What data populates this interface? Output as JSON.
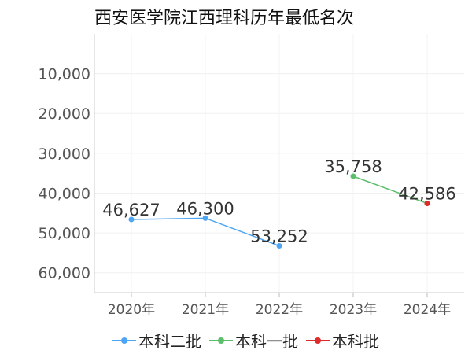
{
  "chart_data": {
    "type": "line",
    "title": "西安医学院江西理科历年最低名次",
    "categories": [
      "2020年",
      "2021年",
      "2022年",
      "2023年",
      "2024年"
    ],
    "y_ticks": [
      "10,000",
      "20,000",
      "30,000",
      "40,000",
      "50,000",
      "60,000"
    ],
    "y_tick_values": [
      10000,
      20000,
      30000,
      40000,
      50000,
      60000
    ],
    "ylim": [
      0,
      65000
    ],
    "y_inverted": true,
    "grid": true,
    "legend_position": "bottom",
    "series": [
      {
        "name": "本科二批",
        "color": "#4da6f5",
        "points": [
          [
            0,
            46627,
            "46,627"
          ],
          [
            1,
            46300,
            "46,300"
          ],
          [
            2,
            53252,
            "53,252"
          ]
        ]
      },
      {
        "name": "本科一批",
        "color": "#5cbf6b",
        "points": [
          [
            3,
            35758,
            "35,758"
          ],
          [
            4,
            42586,
            "42,586"
          ]
        ]
      },
      {
        "name": "本科批",
        "color": "#e02b2b",
        "points": [
          [
            4,
            42586,
            ""
          ]
        ]
      }
    ]
  }
}
